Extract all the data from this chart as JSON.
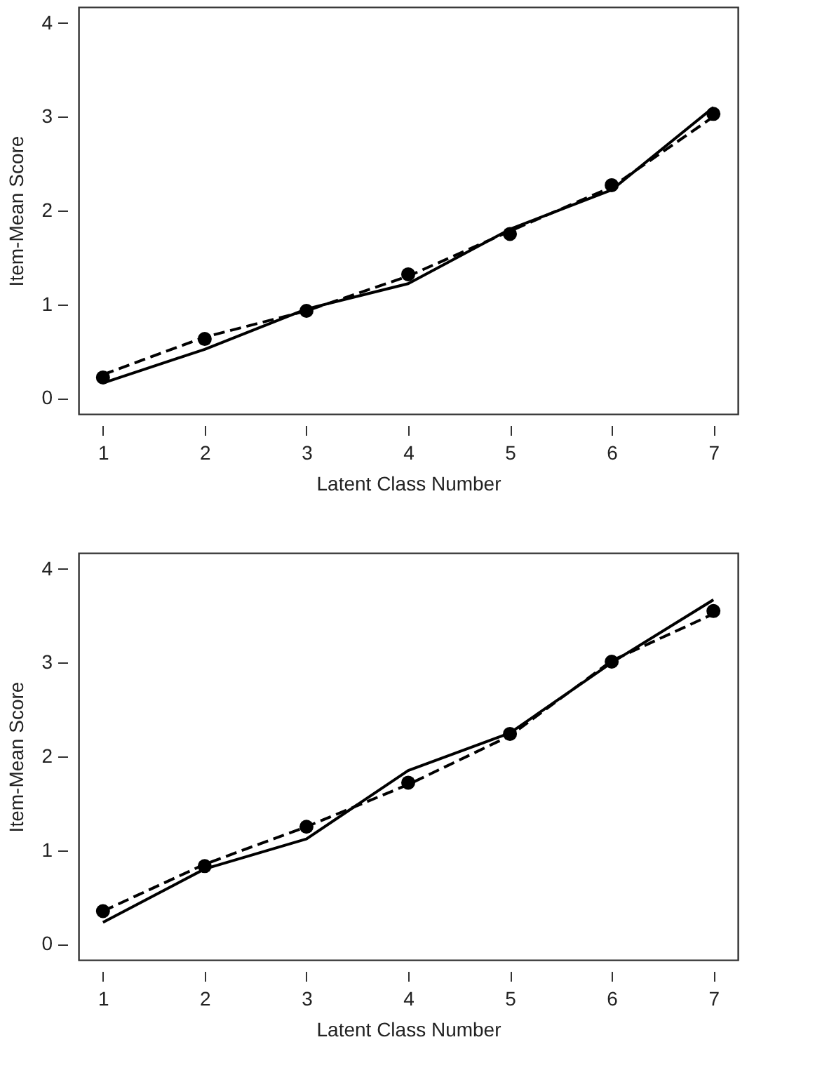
{
  "chart_data": [
    {
      "type": "line",
      "xlabel": "Latent Class Number",
      "ylabel": "Item-Mean Score",
      "x": [
        1,
        2,
        3,
        4,
        5,
        6,
        7
      ],
      "xlim": [
        0.76,
        7.24
      ],
      "xticks": [
        1,
        2,
        3,
        4,
        5,
        6,
        7
      ],
      "ylim": [
        -0.17,
        4.17
      ],
      "yticks": [
        0,
        1,
        2,
        3,
        4
      ],
      "grid": false,
      "series": [
        {
          "color": "#000000",
          "line_style": "solid",
          "values": [
            0.16,
            0.52,
            0.95,
            1.22,
            1.8,
            2.22,
            3.1
          ]
        },
        {
          "color": "#000000",
          "line_style": "dashed",
          "values": [
            0.25,
            0.65,
            0.93,
            1.3,
            1.78,
            2.25,
            3.0
          ]
        },
        {
          "type": "scatter",
          "color": "#000000",
          "marker": "circle",
          "values": [
            0.22,
            0.63,
            0.93,
            1.32,
            1.75,
            2.27,
            3.03
          ]
        }
      ]
    },
    {
      "type": "line",
      "xlabel": "Latent Class Number",
      "ylabel": "Item-Mean Score",
      "x": [
        1,
        2,
        3,
        4,
        5,
        6,
        7
      ],
      "xlim": [
        0.76,
        7.24
      ],
      "xticks": [
        1,
        2,
        3,
        4,
        5,
        6,
        7
      ],
      "ylim": [
        -0.17,
        4.17
      ],
      "yticks": [
        0,
        1,
        2,
        3,
        4
      ],
      "grid": false,
      "series": [
        {
          "color": "#000000",
          "line_style": "solid",
          "values": [
            0.23,
            0.8,
            1.12,
            1.85,
            2.25,
            3.0,
            3.67
          ]
        },
        {
          "color": "#000000",
          "line_style": "dashed",
          "values": [
            0.35,
            0.85,
            1.25,
            1.7,
            2.22,
            3.02,
            3.52
          ]
        },
        {
          "type": "scatter",
          "color": "#000000",
          "marker": "circle",
          "values": [
            0.35,
            0.83,
            1.25,
            1.72,
            2.24,
            3.01,
            3.55
          ]
        }
      ]
    }
  ]
}
